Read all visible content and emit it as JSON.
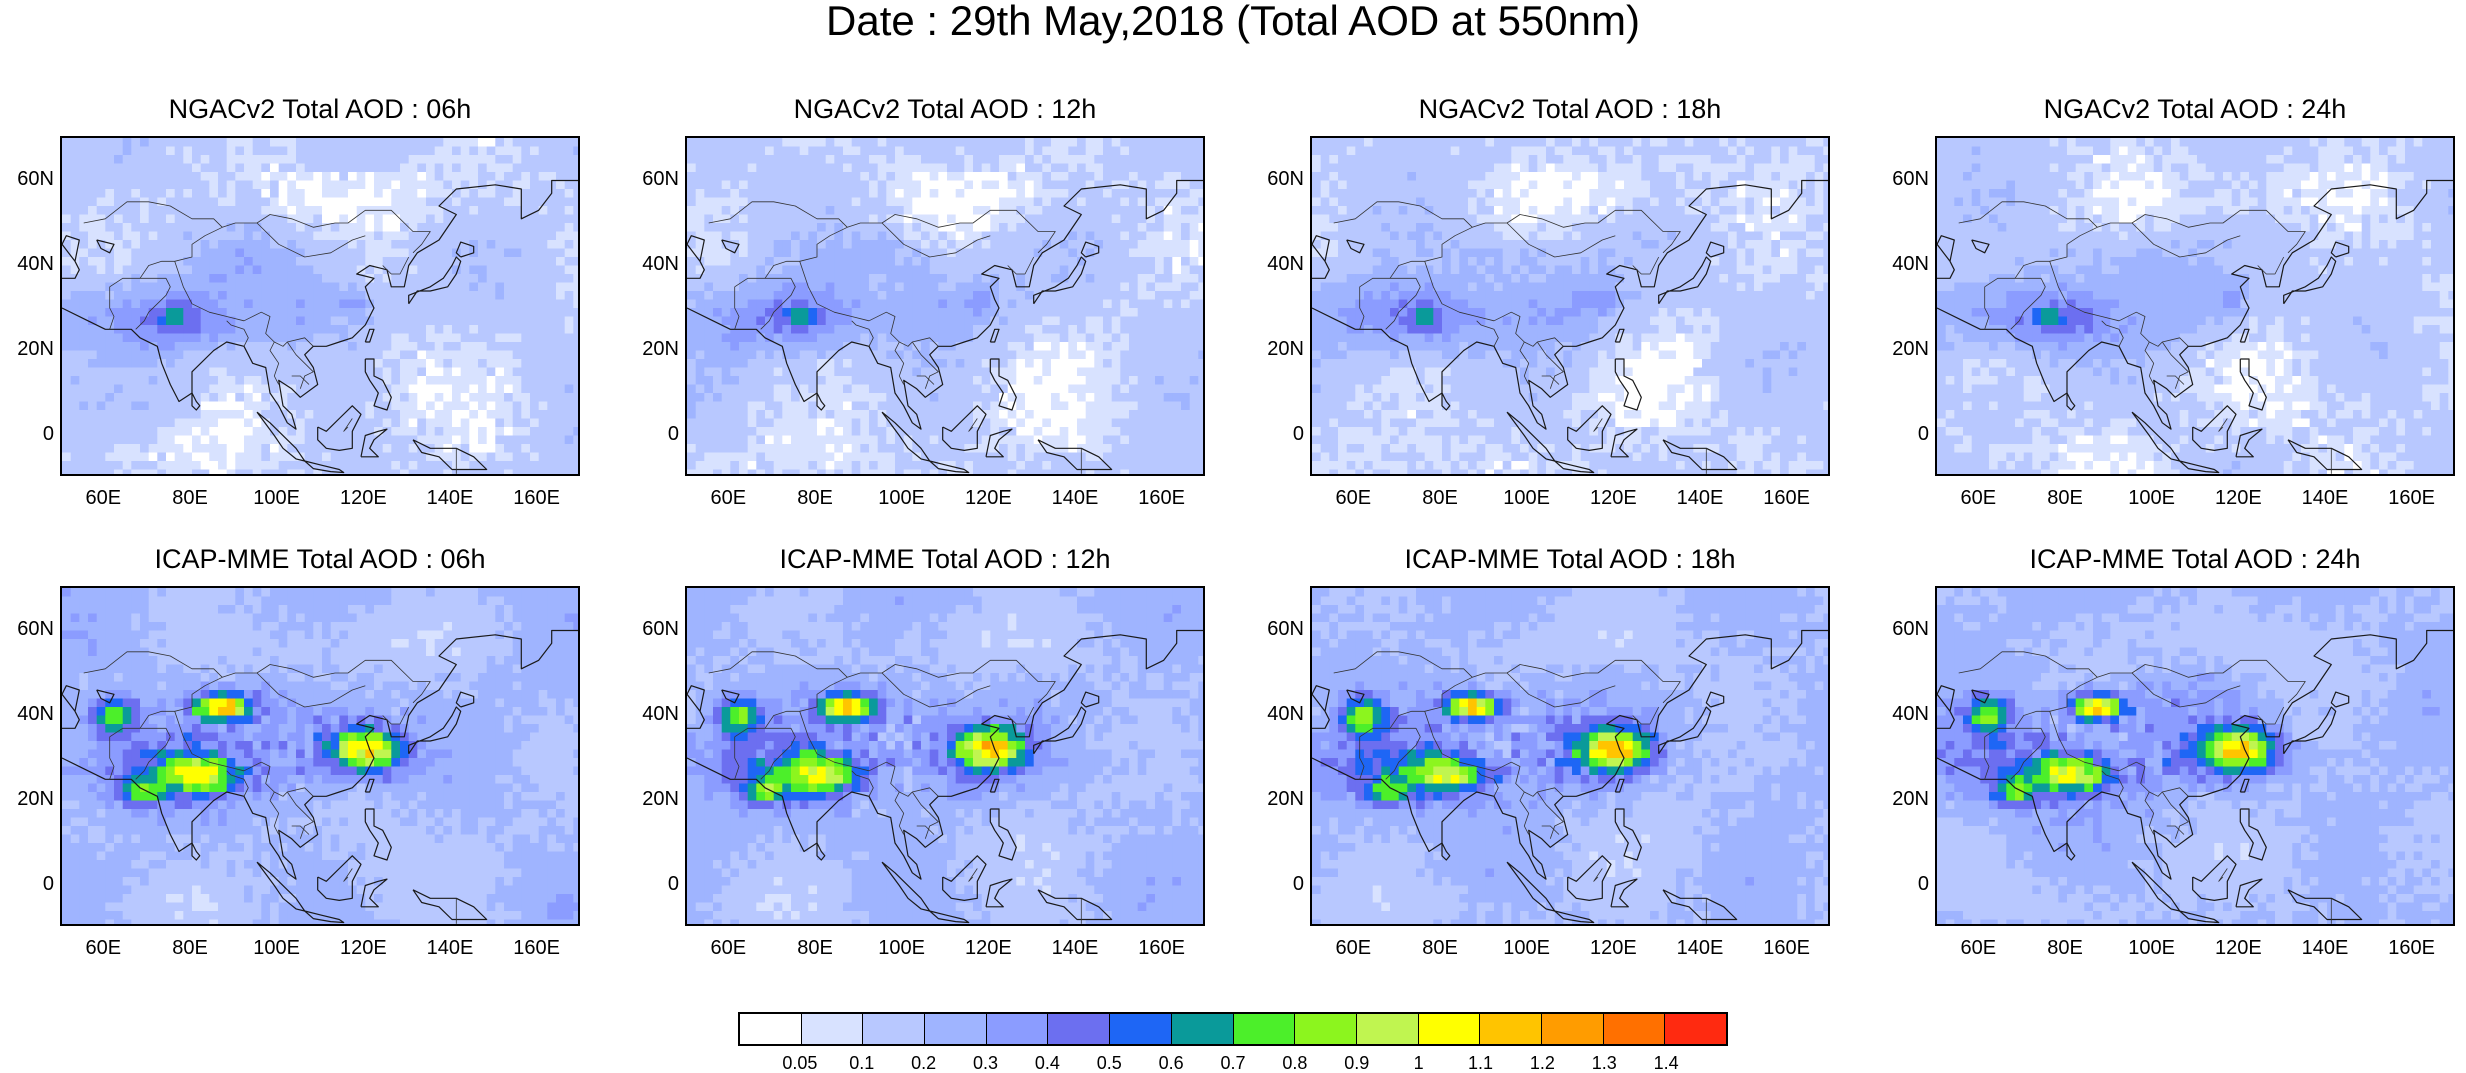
{
  "title": "Date : 29th May,2018 (Total AOD at 550nm)",
  "panels": [
    {
      "title": "NGACv2 Total AOD : 06h",
      "model": "NGACv2",
      "hour": "06h"
    },
    {
      "title": "NGACv2 Total AOD : 12h",
      "model": "NGACv2",
      "hour": "12h"
    },
    {
      "title": "NGACv2 Total AOD : 18h",
      "model": "NGACv2",
      "hour": "18h"
    },
    {
      "title": "NGACv2 Total AOD : 24h",
      "model": "NGACv2",
      "hour": "24h"
    },
    {
      "title": "ICAP-MME Total AOD : 06h",
      "model": "ICAP-MME",
      "hour": "06h"
    },
    {
      "title": "ICAP-MME Total AOD : 12h",
      "model": "ICAP-MME",
      "hour": "12h"
    },
    {
      "title": "ICAP-MME Total AOD : 18h",
      "model": "ICAP-MME",
      "hour": "18h"
    },
    {
      "title": "ICAP-MME Total AOD : 24h",
      "model": "ICAP-MME",
      "hour": "24h"
    }
  ],
  "axes": {
    "lat_ticks": [
      "60N",
      "40N",
      "20N",
      "0"
    ],
    "lon_ticks": [
      "60E",
      "80E",
      "100E",
      "120E",
      "140E",
      "160E"
    ],
    "lat_range": [
      -10,
      70
    ],
    "lon_range": [
      50,
      170
    ]
  },
  "colorbar": {
    "labels": [
      "0.05",
      "0.1",
      "0.2",
      "0.3",
      "0.4",
      "0.5",
      "0.6",
      "0.7",
      "0.8",
      "0.9",
      "1",
      "1.1",
      "1.2",
      "1.3",
      "1.4"
    ],
    "colors": [
      "#ffffff",
      "#d8e2ff",
      "#b8c8ff",
      "#9fb4ff",
      "#8b9cff",
      "#6c6ff0",
      "#1e66f5",
      "#0a9a9a",
      "#4cef2a",
      "#8cf51e",
      "#c0f550",
      "#ffff00",
      "#ffc400",
      "#ff9c00",
      "#ff7000",
      "#ff2a10"
    ]
  }
}
